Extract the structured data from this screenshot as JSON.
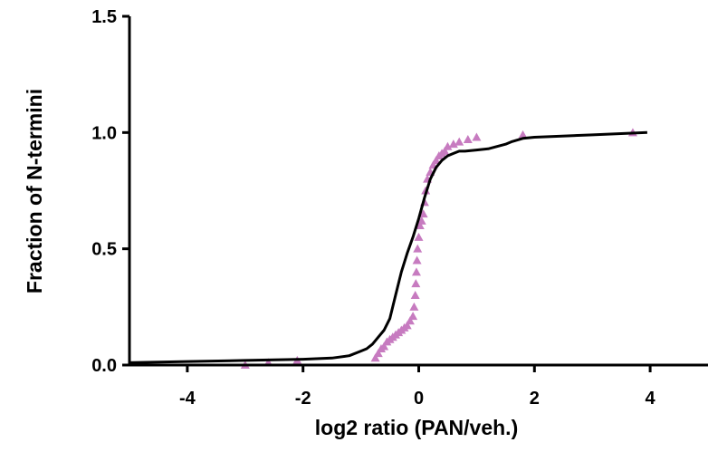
{
  "chart_data": {
    "type": "line",
    "title": "",
    "xlabel": "log2 ratio  (PAN/veh.)",
    "ylabel": "Fraction of N-termini",
    "xlim": [
      -5,
      5
    ],
    "ylim": [
      0,
      1.5
    ],
    "x_ticks": [
      -4,
      -2,
      0,
      2,
      4
    ],
    "x_tick_labels": [
      "-4",
      "-2",
      "0",
      "2",
      "4"
    ],
    "y_ticks": [
      0,
      0.5,
      1.0,
      1.5
    ],
    "y_tick_labels": [
      "0.0",
      "0.5",
      "1.0",
      "1.5"
    ],
    "grid": false,
    "legend": "none",
    "series": [
      {
        "style": "line",
        "color": "#000000",
        "x": [
          -5.0,
          -4.0,
          -3.0,
          -2.0,
          -1.5,
          -1.2,
          -1.0,
          -0.9,
          -0.8,
          -0.7,
          -0.6,
          -0.5,
          -0.4,
          -0.3,
          -0.2,
          -0.1,
          0.0,
          0.1,
          0.2,
          0.3,
          0.4,
          0.5,
          0.6,
          0.7,
          0.8,
          1.0,
          1.2,
          1.5,
          1.6,
          1.8,
          2.0,
          3.0,
          3.95
        ],
        "y": [
          0.01,
          0.015,
          0.02,
          0.025,
          0.03,
          0.04,
          0.06,
          0.07,
          0.09,
          0.12,
          0.15,
          0.2,
          0.3,
          0.4,
          0.48,
          0.55,
          0.63,
          0.72,
          0.8,
          0.85,
          0.88,
          0.9,
          0.91,
          0.92,
          0.92,
          0.925,
          0.93,
          0.95,
          0.96,
          0.975,
          0.98,
          0.99,
          1.0
        ]
      },
      {
        "style": "markers",
        "marker": "triangle",
        "color": "#c77bc0",
        "x": [
          -3.0,
          -2.6,
          -2.1,
          -0.75,
          -0.7,
          -0.65,
          -0.6,
          -0.55,
          -0.5,
          -0.45,
          -0.4,
          -0.35,
          -0.3,
          -0.25,
          -0.2,
          -0.15,
          -0.1,
          -0.08,
          -0.06,
          -0.05,
          -0.04,
          -0.03,
          -0.02,
          0.0,
          0.02,
          0.05,
          0.08,
          0.1,
          0.12,
          0.15,
          0.2,
          0.25,
          0.3,
          0.35,
          0.4,
          0.45,
          0.5,
          0.6,
          0.7,
          0.85,
          1.0,
          1.8,
          3.7
        ],
        "y": [
          0.0,
          0.01,
          0.02,
          0.03,
          0.05,
          0.07,
          0.08,
          0.1,
          0.11,
          0.12,
          0.13,
          0.14,
          0.15,
          0.16,
          0.17,
          0.19,
          0.21,
          0.25,
          0.3,
          0.35,
          0.4,
          0.45,
          0.5,
          0.55,
          0.6,
          0.62,
          0.65,
          0.7,
          0.75,
          0.8,
          0.83,
          0.86,
          0.88,
          0.9,
          0.91,
          0.92,
          0.94,
          0.95,
          0.96,
          0.97,
          0.98,
          0.99,
          1.0
        ]
      }
    ]
  }
}
